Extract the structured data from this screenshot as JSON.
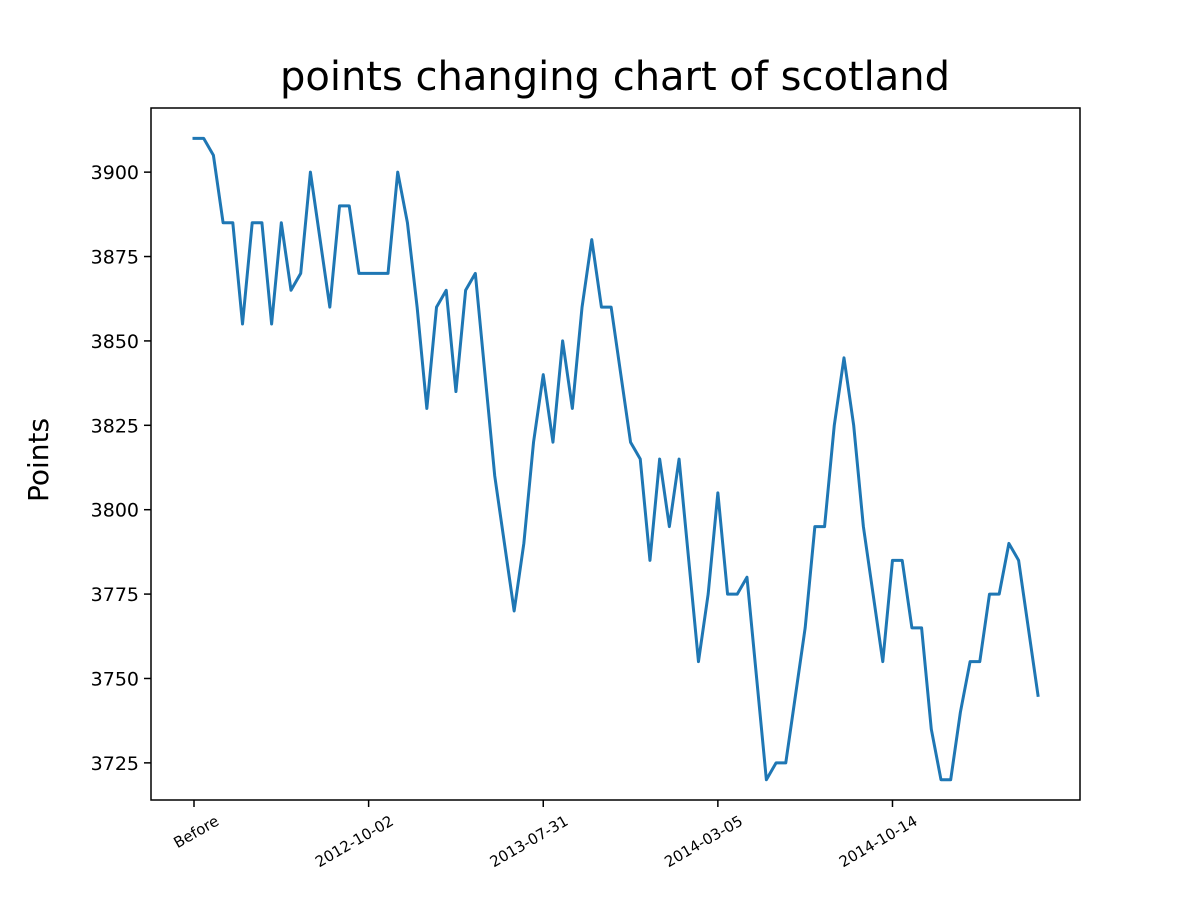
{
  "chart_data": {
    "type": "line",
    "title": "points changing chart of scotland",
    "xlabel": "",
    "ylabel": "Points",
    "ylim": [
      3714,
      3919
    ],
    "grid": false,
    "x_tick_labels": [
      {
        "label": "Before",
        "index": 0
      },
      {
        "label": "2012-10-02",
        "index": 18
      },
      {
        "label": "2013-07-31",
        "index": 36
      },
      {
        "label": "2014-03-05",
        "index": 54
      },
      {
        "label": "2014-10-14",
        "index": 72
      }
    ],
    "y_ticks": [
      3725,
      3750,
      3775,
      3800,
      3825,
      3850,
      3875,
      3900
    ],
    "series": [
      {
        "color": "#1f77b4",
        "values": [
          3910,
          3910,
          3905,
          3885,
          3885,
          3855,
          3885,
          3885,
          3855,
          3885,
          3865,
          3870,
          3900,
          3880,
          3860,
          3890,
          3890,
          3870,
          3870,
          3870,
          3870,
          3900,
          3885,
          3860,
          3830,
          3860,
          3865,
          3835,
          3865,
          3870,
          3840,
          3810,
          3790,
          3770,
          3790,
          3820,
          3840,
          3820,
          3850,
          3830,
          3860,
          3880,
          3860,
          3860,
          3840,
          3820,
          3815,
          3785,
          3815,
          3795,
          3815,
          3785,
          3755,
          3775,
          3805,
          3775,
          3775,
          3780,
          3750,
          3720,
          3725,
          3725,
          3745,
          3765,
          3795,
          3795,
          3825,
          3845,
          3825,
          3795,
          3775,
          3755,
          3785,
          3785,
          3765,
          3765,
          3735,
          3720,
          3720,
          3740,
          3755,
          3755,
          3775,
          3775,
          3790,
          3785,
          3765,
          3745
        ]
      }
    ]
  }
}
